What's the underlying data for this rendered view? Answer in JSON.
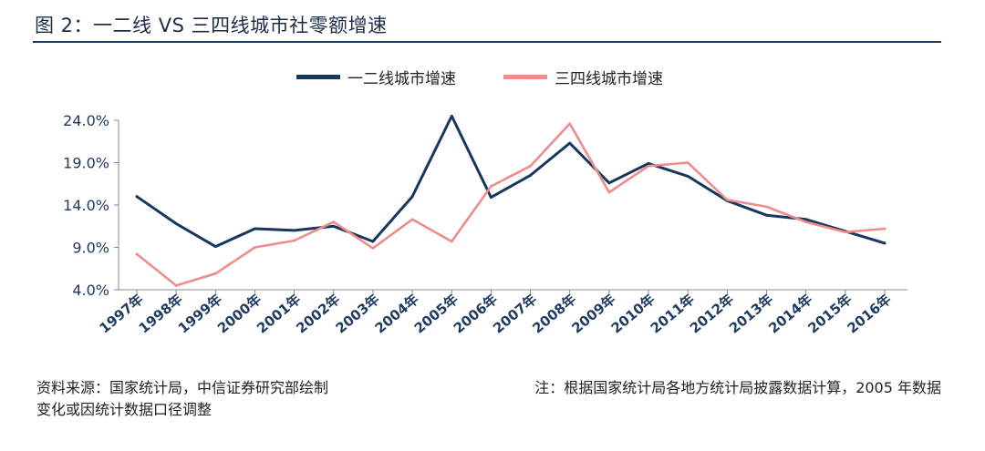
{
  "title": "图 2：一二线 VS 三四线城市社零额增速",
  "chart_data": {
    "type": "line",
    "categories": [
      "1997年",
      "1998年",
      "1999年",
      "2000年",
      "2001年",
      "2002年",
      "2003年",
      "2004年",
      "2005年",
      "2006年",
      "2007年",
      "2008年",
      "2009年",
      "2010年",
      "2011年",
      "2012年",
      "2013年",
      "2014年",
      "2015年",
      "2016年"
    ],
    "series": [
      {
        "name": "一二线城市增速",
        "color": "#17375e",
        "values": [
          15.0,
          11.8,
          9.1,
          11.2,
          11.0,
          11.5,
          9.7,
          15.0,
          24.5,
          14.9,
          17.5,
          21.3,
          16.6,
          18.9,
          17.4,
          14.5,
          12.8,
          12.3,
          10.9,
          9.5
        ]
      },
      {
        "name": "三四线城市增速",
        "color": "#f08c8c",
        "values": [
          8.2,
          4.5,
          5.9,
          9.0,
          9.8,
          12.0,
          8.9,
          12.3,
          9.7,
          16.2,
          18.6,
          23.6,
          15.5,
          18.6,
          19.0,
          14.6,
          13.8,
          12.0,
          10.8,
          11.2
        ]
      }
    ],
    "yticks": [
      "4.0%",
      "9.0%",
      "14.0%",
      "19.0%",
      "24.0%"
    ],
    "ylim": [
      4.0,
      24.0
    ],
    "legend": "top-center",
    "grid": false
  },
  "footer": {
    "source_line1": "资料来源：国家统计局，中信证券研究部绘制",
    "note_line1": "注：根据国家统计局各地方统计局披露数据计算，2005 年数据",
    "note_line2": "变化或因统计数据口径调整"
  }
}
